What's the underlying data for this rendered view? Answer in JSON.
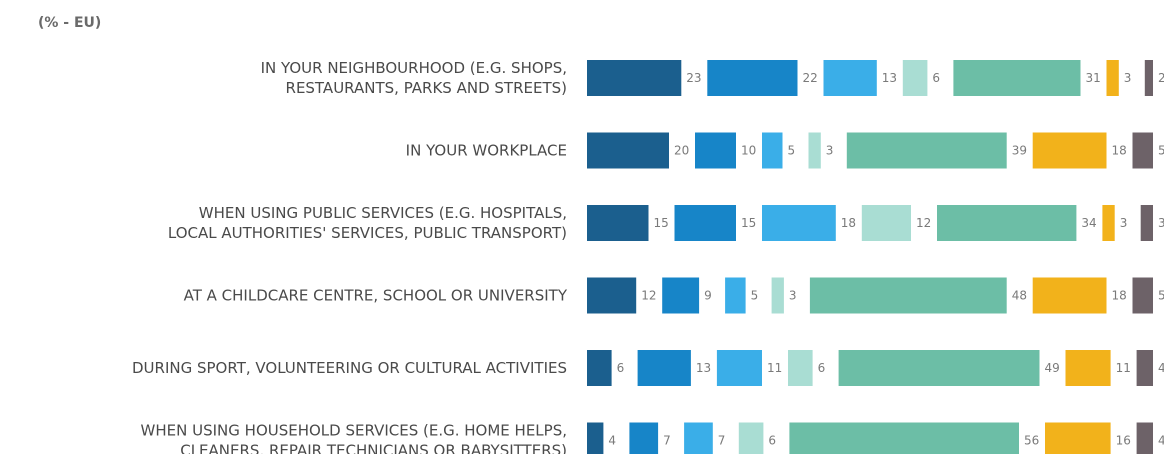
{
  "chart_data": {
    "type": "bar",
    "orientation": "horizontal-segmented",
    "unit_label": "(% - EU)",
    "categories": [
      [
        "IN YOUR NEIGHBOURHOOD (E.G. SHOPS,",
        "RESTAURANTS, PARKS AND STREETS)"
      ],
      [
        "IN YOUR WORKPLACE"
      ],
      [
        "WHEN USING PUBLIC SERVICES (E.G. HOSPITALS,",
        "LOCAL AUTHORITIES' SERVICES, PUBLIC TRANSPORT)"
      ],
      [
        "AT A CHILDCARE CENTRE, SCHOOL OR UNIVERSITY"
      ],
      [
        "DURING SPORT, VOLUNTEERING OR CULTURAL ACTIVITIES"
      ],
      [
        "WHEN USING HOUSEHOLD SERVICES (E.G. HOME HELPS,",
        "CLEANERS, REPAIR TECHNICIANS OR BABYSITTERS)"
      ]
    ],
    "series": [
      {
        "color": "#1b5f8e",
        "values": [
          23,
          20,
          15,
          12,
          6,
          4
        ]
      },
      {
        "color": "#1785c8",
        "values": [
          22,
          10,
          15,
          9,
          13,
          7
        ]
      },
      {
        "color": "#3aaee8",
        "values": [
          13,
          5,
          18,
          5,
          11,
          7
        ]
      },
      {
        "color": "#a9ddd3",
        "values": [
          6,
          3,
          12,
          3,
          6,
          6
        ]
      },
      {
        "color": "#6cbea6",
        "values": [
          31,
          39,
          34,
          48,
          49,
          56
        ]
      },
      {
        "color": "#f2b21b",
        "values": [
          3,
          18,
          3,
          18,
          11,
          16
        ]
      },
      {
        "color": "#6d6268",
        "values": [
          2,
          5,
          3,
          5,
          4,
          4
        ]
      }
    ],
    "legend": false,
    "grid": false
  }
}
